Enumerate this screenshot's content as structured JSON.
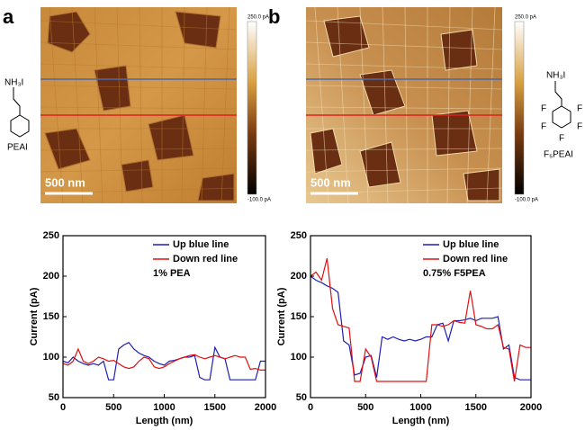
{
  "figure": {
    "panels": [
      {
        "label": "a",
        "scale_bar": "500 nm",
        "colorbar_max": "250.0 pA",
        "colorbar_min": "-100.0 pA",
        "molecule": {
          "group": "NH₃I",
          "name": "PEAI"
        }
      },
      {
        "label": "b",
        "scale_bar": "500 nm",
        "colorbar_max": "250.0 pA",
        "colorbar_min": "-100.0 pA",
        "molecule": {
          "group": "NH₃I",
          "name": "F₅PEAI",
          "atoms": [
            "F",
            "F",
            "F",
            "F",
            "F"
          ]
        }
      }
    ]
  },
  "chart_data": [
    {
      "type": "line",
      "xlabel": "Length (nm)",
      "ylabel": "Current (pA)",
      "annotation": "1% PEA",
      "xlim": [
        0,
        2000
      ],
      "xticks": [
        0,
        500,
        1000,
        1500,
        2000
      ],
      "ylim": [
        50,
        250
      ],
      "yticks": [
        50,
        100,
        150,
        200,
        250
      ],
      "x": [
        0,
        50,
        100,
        150,
        200,
        250,
        300,
        350,
        400,
        450,
        500,
        550,
        600,
        650,
        700,
        750,
        800,
        850,
        900,
        950,
        1000,
        1050,
        1100,
        1150,
        1200,
        1250,
        1300,
        1350,
        1400,
        1450,
        1500,
        1550,
        1600,
        1650,
        1700,
        1750,
        1800,
        1850,
        1900,
        1950,
        2000
      ],
      "series": [
        {
          "name": "Up blue line",
          "color": "#1f1fb4",
          "values": [
            95,
            93,
            100,
            95,
            92,
            90,
            92,
            90,
            95,
            72,
            72,
            110,
            115,
            118,
            110,
            105,
            102,
            100,
            95,
            92,
            90,
            95,
            96,
            98,
            100,
            100,
            102,
            75,
            72,
            72,
            112,
            100,
            98,
            72,
            72,
            72,
            72,
            72,
            72,
            95,
            95
          ]
        },
        {
          "name": "Down red line",
          "color": "#e01010",
          "values": [
            92,
            90,
            95,
            110,
            95,
            92,
            95,
            100,
            98,
            95,
            96,
            92,
            88,
            86,
            88,
            95,
            100,
            98,
            88,
            86,
            88,
            92,
            95,
            98,
            100,
            102,
            103,
            100,
            98,
            100,
            102,
            100,
            98,
            100,
            102,
            100,
            100,
            85,
            86,
            84,
            84
          ]
        }
      ]
    },
    {
      "type": "line",
      "xlabel": "Length (nm)",
      "ylabel": "Current (pA)",
      "annotation": "0.75% F5PEA",
      "xlim": [
        0,
        2000
      ],
      "xticks": [
        0,
        500,
        1000,
        1500,
        2000
      ],
      "ylim": [
        50,
        250
      ],
      "yticks": [
        50,
        100,
        150,
        200,
        250
      ],
      "x": [
        0,
        50,
        100,
        150,
        200,
        250,
        300,
        350,
        400,
        450,
        500,
        550,
        600,
        650,
        700,
        750,
        800,
        850,
        900,
        950,
        1000,
        1050,
        1100,
        1150,
        1200,
        1250,
        1300,
        1350,
        1400,
        1450,
        1500,
        1550,
        1600,
        1650,
        1700,
        1750,
        1800,
        1850,
        1900,
        1950,
        2000
      ],
      "series": [
        {
          "name": "Up blue line",
          "color": "#1f1fb4",
          "values": [
            200,
            195,
            192,
            188,
            185,
            180,
            120,
            115,
            78,
            80,
            100,
            102,
            75,
            125,
            122,
            125,
            122,
            120,
            122,
            120,
            122,
            125,
            125,
            140,
            142,
            120,
            145,
            145,
            146,
            148,
            145,
            148,
            148,
            148,
            150,
            110,
            115,
            75,
            72,
            72,
            72
          ]
        },
        {
          "name": "Down red line",
          "color": "#e01010",
          "values": [
            200,
            205,
            195,
            222,
            160,
            140,
            138,
            136,
            70,
            70,
            110,
            100,
            70,
            70,
            70,
            70,
            70,
            70,
            70,
            70,
            70,
            70,
            140,
            140,
            138,
            140,
            145,
            143,
            142,
            182,
            140,
            138,
            135,
            135,
            140,
            112,
            110,
            70,
            115,
            112,
            112
          ]
        }
      ]
    }
  ]
}
